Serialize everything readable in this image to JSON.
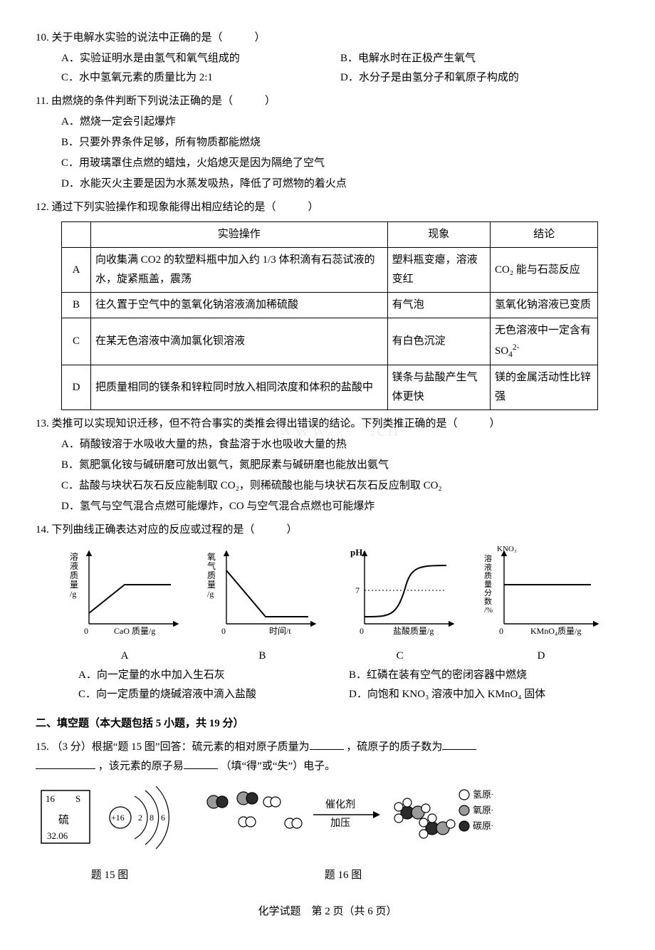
{
  "q10": {
    "num": "10.",
    "stem": "关于电解水实验的说法中正确的是（　　　）",
    "opts": {
      "A": "A．实验证明水是由氢气和氧气组成的",
      "B": "B．电解水时在正极产生氧气",
      "C": "C．水中氢氧元素的质量比为 2:1",
      "D": "D．水分子是由氢分子和氧原子构成的"
    }
  },
  "q11": {
    "num": "11.",
    "stem": "由燃烧的条件判断下列说法正确的是（　　　）",
    "opts": {
      "A": "A．燃烧一定会引起爆炸",
      "B": "B．只要外界条件足够，所有物质都能燃烧",
      "C": "C．用玻璃罩住点燃的蜡烛，火焰熄灭是因为隔绝了空气",
      "D": "D．水能灭火主要是因为水蒸发吸热，降低了可燃物的着火点"
    }
  },
  "q12": {
    "num": "12.",
    "stem": "通过下列实验操作和现象能得出相应结论的是（　　　）",
    "headers": {
      "op": "实验操作",
      "ph": "现象",
      "con": "结论"
    },
    "rows": [
      {
        "k": "A",
        "op": "向收集满 CO2 的软塑料瓶中加入约 1/3 体积滴有石蕊试液的水，旋紧瓶盖，震荡",
        "ph": "塑料瓶变瘪，溶液变红",
        "con": "CO₂ 能与石蕊反应"
      },
      {
        "k": "B",
        "op": "往久置于空气中的氢氧化钠溶液滴加稀硫酸",
        "ph": "有气泡",
        "con": "氢氧化钠溶液已变质"
      },
      {
        "k": "C",
        "op": "在某无色溶液中滴加氯化钡溶液",
        "ph": "有白色沉淀",
        "con_html": "无色溶液中一定含有 SO<sub>4</sub><sup>2-</sup>"
      },
      {
        "k": "D",
        "op": "把质量相同的镁条和锌粒同时放入相同浓度和体积的盐酸中",
        "ph": "镁条与盐酸产生气体更快",
        "con": "镁的金属活动性比锌强"
      }
    ]
  },
  "q13": {
    "num": "13.",
    "stem": "类推可以实现知识迁移，但不符合事实的类推会得出错误的结论。下列类推正确的是（　　　）",
    "opts": {
      "A": "A．硝酸铵溶于水吸收大量的热，食盐溶于水也吸收大量的热",
      "B": "B．氮肥氯化铵与碱研磨可放出氨气，氮肥尿素与碱研磨也能放出氨气",
      "C": "C．盐酸与块状石灰石反应能制取 CO₂，则稀硫酸也能与块状石灰石反应制取 CO₂",
      "D": "D．氢气与空气混合点燃可能爆炸，CO 与空气混合点燃也可能爆炸"
    }
  },
  "q14": {
    "num": "14.",
    "stem": "下列曲线正确表达对应的反应或过程的是（　　　）",
    "charts": {
      "A": {
        "ylabel": "溶液质量/g",
        "xlabel": "CaO 质量/g",
        "letter": "A"
      },
      "B": {
        "ylabel": "氧气质量/g",
        "xlabel": "时间/t",
        "letter": "B"
      },
      "C": {
        "ylabel": "pH",
        "xlabel": "盐酸质量/g",
        "tick": "7",
        "letter": "C"
      },
      "D": {
        "ylabel": "KNO₃溶液质量分数/%",
        "xlabel": "KMnO₄质量/g",
        "letter": "D"
      }
    },
    "chart_style": {
      "width": 170,
      "height": 130,
      "axis_color": "#000",
      "curve_color": "#000",
      "curve_width": 2,
      "axis_width": 1.4,
      "font_size": 12
    },
    "opts": {
      "A": "A．向一定量的水中加入生石灰",
      "B": "B．红磷在装有空气的密闭容器中燃烧",
      "C": "C．向一定质量的烧碱溶液中滴入盐酸",
      "D": "D．向饱和 KNO₃ 溶液中加入 KMnO₄ 固体"
    }
  },
  "section2": "二、填空题（本大题包括 5 小题，共 19 分）",
  "q15": {
    "num": "15.",
    "prefix": "（3 分）根据“题 15 图”回答：硫元素的相对原子质量为",
    "mid1": "，硫原子的质子数为",
    "mid2": "，该元素的原子易",
    "mid3": "（填“得”或“失”）电子。"
  },
  "fig15": {
    "box": {
      "num": "16",
      "sym": "S",
      "name": "硫",
      "mass": "32.06"
    },
    "shells": {
      "center": "+16",
      "s1": "2",
      "s2": "8",
      "s3": "6"
    },
    "caption": "题 15 图"
  },
  "fig16": {
    "arrow_top": "催化剂",
    "arrow_bot": "加压",
    "legend": {
      "h": "氢原子",
      "o": "氧原子",
      "c": "碳原子"
    },
    "caption": "题 16 图",
    "colors": {
      "h": "#ffffff",
      "o": "#9a9a9a",
      "c": "#2b2b2b",
      "stroke": "#000"
    }
  },
  "footer": "化学试题　第 2 页（共 6 页）",
  "watermark": "www.***.cn"
}
